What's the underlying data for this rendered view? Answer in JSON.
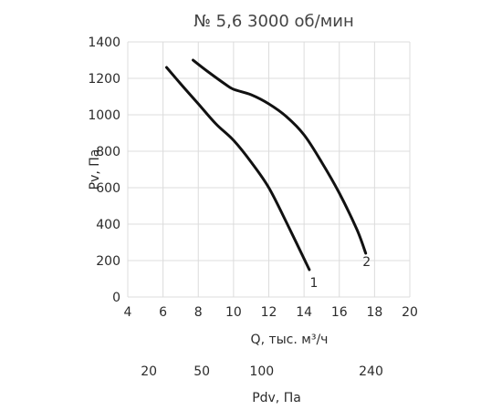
{
  "chart_data": {
    "type": "line",
    "title": "№ 5,6 3000 об/мин",
    "xlabel": "Q, тыс. м³/ч",
    "ylabel": "Pv, Па",
    "xlim": [
      4,
      20
    ],
    "ylim": [
      0,
      1400
    ],
    "x_ticks": [
      "4",
      "6",
      "8",
      "10",
      "12",
      "14",
      "16",
      "18",
      "20"
    ],
    "y_ticks": [
      "0",
      "200",
      "400",
      "600",
      "800",
      "1000",
      "1200",
      "1400"
    ],
    "grid": true,
    "series": [
      {
        "name": "1",
        "x": [
          6.2,
          7.0,
          8.0,
          9.0,
          10.0,
          11.0,
          12.0,
          13.0,
          14.3
        ],
        "y": [
          1260,
          1170,
          1060,
          950,
          860,
          740,
          600,
          410,
          150
        ]
      },
      {
        "name": "2",
        "x": [
          7.7,
          8.5,
          9.5,
          10.0,
          11.0,
          12.0,
          13.0,
          14.0,
          15.0,
          16.0,
          17.0,
          17.5
        ],
        "y": [
          1300,
          1240,
          1170,
          1140,
          1110,
          1060,
          990,
          890,
          740,
          570,
          370,
          240
        ]
      }
    ],
    "secondary_axis": {
      "label": "Pdv, Па",
      "ticks": [
        {
          "label": "20",
          "q": 5.2
        },
        {
          "label": "50",
          "q": 8.2
        },
        {
          "label": "100",
          "q": 11.6
        },
        {
          "label": "240",
          "q": 17.8
        }
      ]
    }
  }
}
